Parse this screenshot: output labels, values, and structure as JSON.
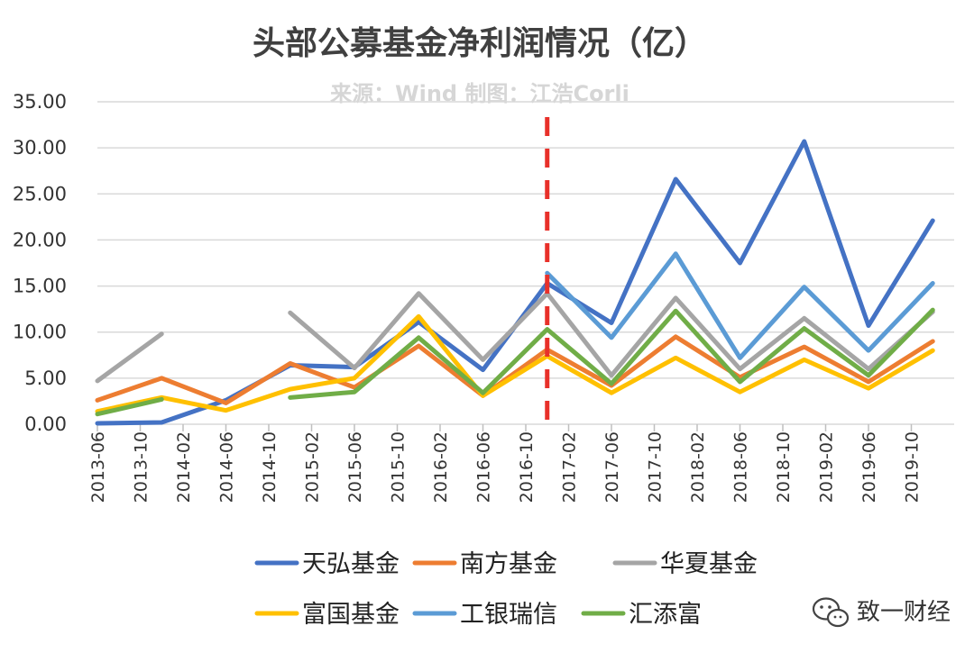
{
  "chart_data": {
    "type": "line",
    "title": "头部公募基金净利润情况（亿）",
    "subtitle": "来源：Wind 制图：江浩Corli",
    "x": [
      "2013-06",
      "2013-12",
      "2014-06",
      "2014-12",
      "2015-06",
      "2015-12",
      "2016-06",
      "2016-12",
      "2017-06",
      "2017-12",
      "2018-06",
      "2018-12",
      "2019-06",
      "2019-12"
    ],
    "xtick_labels": [
      "2013-06",
      "2013-10",
      "2014-02",
      "2014-06",
      "2014-10",
      "2015-02",
      "2015-06",
      "2015-10",
      "2016-02",
      "2016-06",
      "2016-10",
      "2017-02",
      "2017-06",
      "2017-10",
      "2018-02",
      "2018-06",
      "2018-10",
      "2019-02",
      "2019-06",
      "2019-10"
    ],
    "ylim": [
      0,
      35
    ],
    "yticks": [
      "0.00",
      "5.00",
      "10.00",
      "15.00",
      "20.00",
      "25.00",
      "30.00",
      "35.00"
    ],
    "grid": true,
    "legend_position": "bottom",
    "marker_x": "2016-12",
    "marker_color": "#e8302a",
    "series": [
      {
        "name": "天弘基金",
        "color": "#4472c4",
        "values": [
          0.1,
          0.2,
          2.6,
          6.4,
          6.2,
          11.1,
          5.9,
          15.3,
          11.0,
          26.6,
          17.5,
          30.7,
          10.7,
          22.1
        ]
      },
      {
        "name": "南方基金",
        "color": "#ed7d31",
        "values": [
          2.6,
          5.0,
          2.3,
          6.6,
          4.0,
          8.5,
          3.1,
          8.1,
          4.2,
          9.5,
          5.1,
          8.4,
          4.6,
          9.0
        ]
      },
      {
        "name": "华夏基金",
        "color": "#a5a5a5",
        "values": [
          4.7,
          9.8,
          null,
          12.1,
          6.1,
          14.2,
          7.0,
          14.2,
          5.3,
          13.7,
          6.0,
          11.5,
          6.0,
          12.2
        ]
      },
      {
        "name": "富国基金",
        "color": "#ffc000",
        "values": [
          1.4,
          2.9,
          1.5,
          3.8,
          5.0,
          11.7,
          3.1,
          7.4,
          3.4,
          7.2,
          3.5,
          7.0,
          3.9,
          8.0
        ]
      },
      {
        "name": "工银瑞信",
        "color": "#5b9bd5",
        "values": [
          null,
          null,
          null,
          null,
          null,
          null,
          null,
          16.4,
          9.4,
          18.5,
          7.2,
          14.9,
          8.0,
          15.3
        ]
      },
      {
        "name": "汇添富",
        "color": "#70ad47",
        "values": [
          1.1,
          2.7,
          null,
          2.9,
          3.5,
          9.4,
          3.4,
          10.3,
          4.4,
          12.3,
          4.6,
          10.4,
          5.3,
          12.4
        ]
      }
    ]
  },
  "watermark": {
    "text": "致一财经",
    "icon": "wechat-icon"
  }
}
